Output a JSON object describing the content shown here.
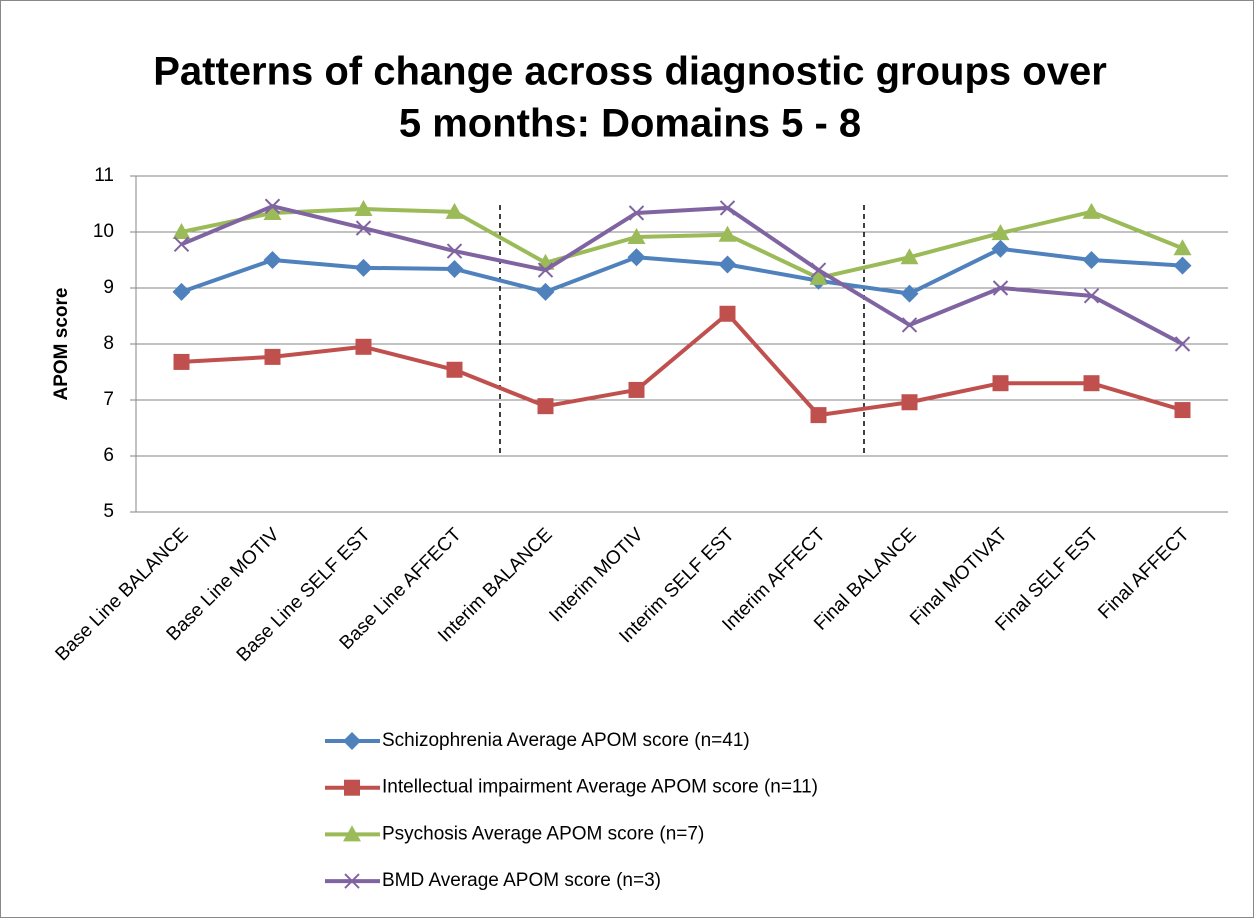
{
  "chart_data": {
    "type": "line",
    "title": [
      "Patterns of change across diagnostic groups over",
      "5 months: Domains 5 - 8"
    ],
    "y_label": "APOM score",
    "categories": [
      "Base Line BALANCE",
      "Base Line MOTIV",
      "Base Line SELF EST",
      "Base Line AFFECT",
      "Interim BALANCE",
      "Interim MOTIV",
      "Interim SELF EST",
      "Interim AFFECT",
      "Final BALANCE",
      "Final MOTIVAT",
      "Final SELF EST",
      "Final AFFECT"
    ],
    "series": [
      {
        "name": "Schizophrenia Average APOM score (n=41)",
        "color": "#4f81bd",
        "marker": "diamond",
        "values": [
          8.93,
          9.5,
          9.36,
          9.34,
          8.93,
          9.55,
          9.42,
          9.13,
          8.9,
          9.7,
          9.5,
          9.4
        ]
      },
      {
        "name": "Intellectual impairment Average APOM score (n=11)",
        "color": "#c0504d",
        "marker": "square",
        "values": [
          7.68,
          7.77,
          7.95,
          7.54,
          6.89,
          7.18,
          8.54,
          6.73,
          6.96,
          7.3,
          7.3,
          6.82
        ]
      },
      {
        "name": "Psychosis Average APOM score (n=7)",
        "color": "#9bbb59",
        "marker": "triangle",
        "values": [
          10.0,
          10.34,
          10.41,
          10.36,
          9.45,
          9.91,
          9.95,
          9.18,
          9.55,
          9.98,
          10.36,
          9.71
        ]
      },
      {
        "name": "BMD Average APOM score  (n=3)",
        "color": "#8064a2",
        "marker": "x",
        "values": [
          9.78,
          10.46,
          10.07,
          9.66,
          9.32,
          10.34,
          10.43,
          9.32,
          8.34,
          9.0,
          8.86,
          8.0
        ]
      }
    ],
    "ylim": [
      5,
      11
    ],
    "yticks": [
      5,
      6,
      7,
      8,
      9,
      10,
      11
    ],
    "grid": true
  }
}
